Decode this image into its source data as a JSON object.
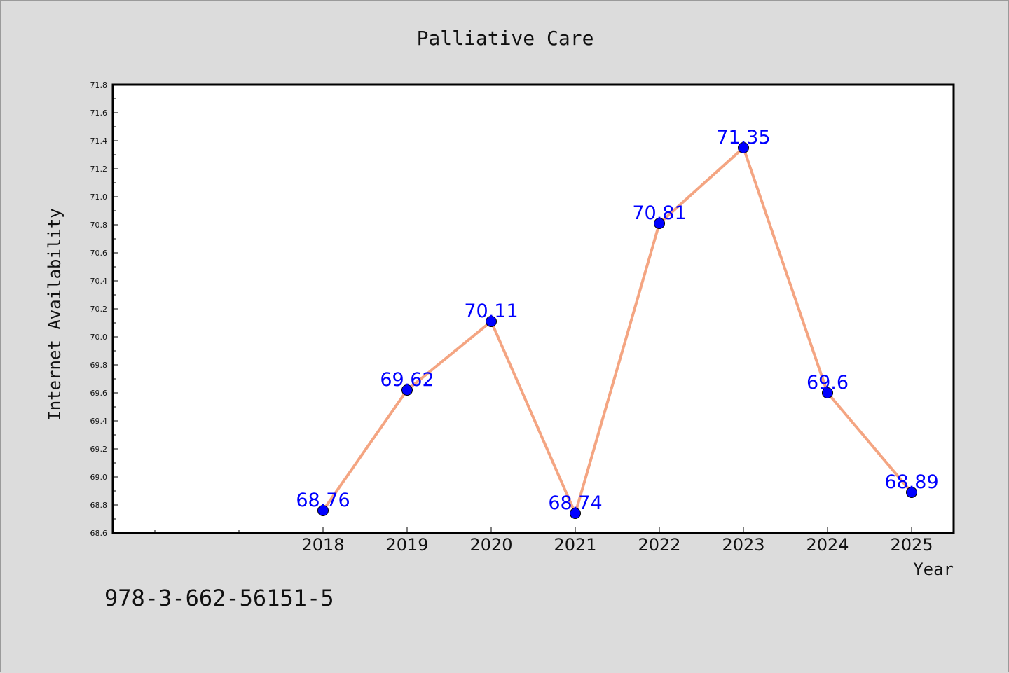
{
  "chart_data": {
    "type": "line",
    "title": "Palliative Care",
    "xlabel": "Year",
    "ylabel": "Internet Availability",
    "categories": [
      "2018",
      "2019",
      "2020",
      "2021",
      "2022",
      "2023",
      "2024",
      "2025"
    ],
    "series": [
      {
        "values": [
          68.76,
          69.62,
          70.11,
          68.74,
          70.81,
          71.35,
          69.6,
          68.89
        ],
        "labels": [
          "68.76",
          "69.62",
          "70.11",
          "68.74",
          "70.81",
          "71.35",
          "69.6",
          "68.89"
        ],
        "line_color": "#f4a582",
        "marker_color": "#0000ff"
      }
    ],
    "ylim": [
      68.6,
      71.8
    ],
    "yticks": [
      "68.6",
      "68.8",
      "69.0",
      "69.2",
      "69.4",
      "69.6",
      "69.8",
      "70.0",
      "70.2",
      "70.4",
      "70.6",
      "70.8",
      "71.0",
      "71.2",
      "71.4",
      "71.6",
      "71.8"
    ],
    "grid": false,
    "legend": "none",
    "label_color": "#0000ff"
  },
  "footer": {
    "note": "978-3-662-56151-5"
  }
}
